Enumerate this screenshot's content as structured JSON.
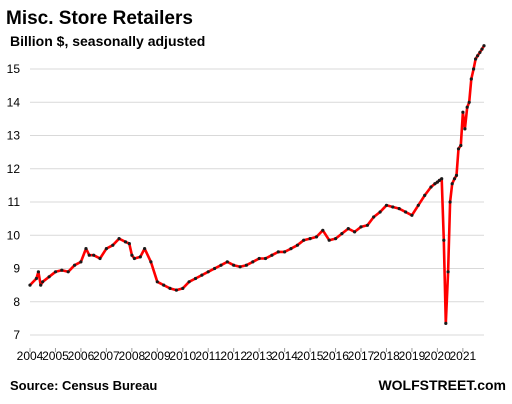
{
  "chart_data": {
    "type": "line",
    "title": "Misc. Store Retailers",
    "subtitle": "Billion $, seasonally adjusted",
    "source": "Source: Census Bureau",
    "brand": "WOLFSTREET.com",
    "xlabel": "",
    "ylabel": "",
    "ylim": [
      7,
      15.5
    ],
    "yticks": [
      7,
      8,
      9,
      10,
      11,
      12,
      13,
      14,
      15
    ],
    "xlim": [
      2004.0,
      2021.83
    ],
    "xticks": [
      2004,
      2005,
      2006,
      2007,
      2008,
      2009,
      2010,
      2011,
      2012,
      2013,
      2014,
      2015,
      2016,
      2017,
      2018,
      2019,
      2020,
      2021
    ],
    "grid": "horizontal",
    "legend": "none",
    "colors": {
      "line": "#ff0000",
      "points": "#1a1a1a",
      "grid": "#d9d9d9"
    },
    "series": [
      {
        "values_x": [
          2004.0,
          2004.25,
          2004.33,
          2004.42,
          2004.5,
          2004.75,
          2005.0,
          2005.25,
          2005.5,
          2005.75,
          2006.0,
          2006.2,
          2006.33,
          2006.5,
          2006.75,
          2007.0,
          2007.25,
          2007.5,
          2007.75,
          2007.9,
          2008.0,
          2008.1,
          2008.33,
          2008.5,
          2008.75,
          2009.0,
          2009.25,
          2009.5,
          2009.75,
          2010.0,
          2010.25,
          2010.5,
          2010.75,
          2011.0,
          2011.25,
          2011.5,
          2011.75,
          2012.0,
          2012.25,
          2012.5,
          2012.75,
          2013.0,
          2013.25,
          2013.5,
          2013.75,
          2014.0,
          2014.25,
          2014.5,
          2014.75,
          2015.0,
          2015.25,
          2015.5,
          2015.75,
          2016.0,
          2016.25,
          2016.5,
          2016.75,
          2017.0,
          2017.25,
          2017.5,
          2017.75,
          2018.0,
          2018.25,
          2018.5,
          2018.75,
          2019.0,
          2019.25,
          2019.5,
          2019.75,
          2019.9,
          2020.0,
          2020.08,
          2020.17,
          2020.25,
          2020.33,
          2020.42,
          2020.5,
          2020.58,
          2020.67,
          2020.75,
          2020.83,
          2020.92,
          2021.0,
          2021.08,
          2021.17,
          2021.25,
          2021.33,
          2021.42,
          2021.5,
          2021.58,
          2021.67,
          2021.75,
          2021.83
        ],
        "values": [
          8.5,
          8.7,
          8.9,
          8.5,
          8.6,
          8.75,
          8.9,
          8.95,
          8.9,
          9.1,
          9.2,
          9.6,
          9.4,
          9.4,
          9.3,
          9.6,
          9.7,
          9.9,
          9.8,
          9.75,
          9.4,
          9.3,
          9.35,
          9.6,
          9.2,
          8.6,
          8.5,
          8.4,
          8.35,
          8.4,
          8.6,
          8.7,
          8.8,
          8.9,
          9.0,
          9.1,
          9.2,
          9.1,
          9.05,
          9.1,
          9.2,
          9.3,
          9.3,
          9.4,
          9.5,
          9.5,
          9.6,
          9.7,
          9.85,
          9.9,
          9.95,
          10.15,
          9.85,
          9.9,
          10.05,
          10.2,
          10.1,
          10.25,
          10.3,
          10.55,
          10.7,
          10.9,
          10.85,
          10.8,
          10.7,
          10.6,
          10.9,
          11.2,
          11.45,
          11.55,
          11.6,
          11.65,
          11.7,
          9.85,
          7.35,
          8.9,
          11.0,
          11.55,
          11.7,
          11.8,
          12.6,
          12.7,
          13.7,
          13.2,
          13.85,
          14.0,
          14.7,
          15.0,
          15.3,
          15.4,
          15.5,
          15.6,
          15.7
        ]
      }
    ]
  }
}
